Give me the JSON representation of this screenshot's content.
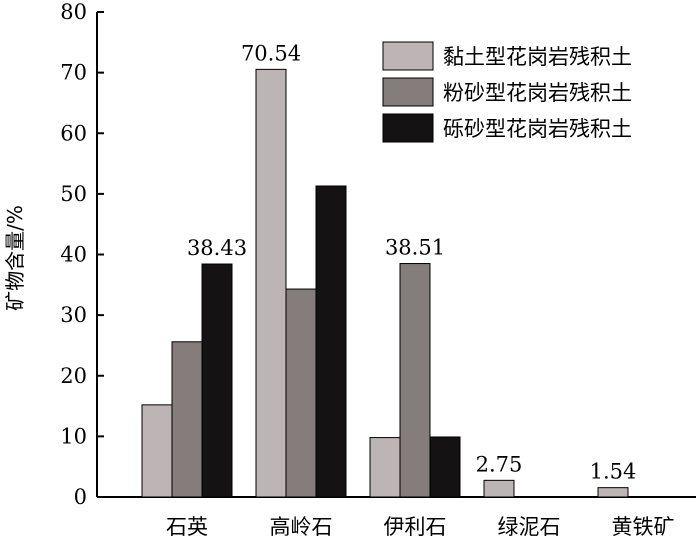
{
  "chart_data": {
    "type": "bar",
    "categories": [
      "石英",
      "高岭石",
      "伊利石",
      "绿泥石",
      "黄铁矿"
    ],
    "series": [
      {
        "name": "黏土型花岗岩残积土",
        "color": "#bdb5b5",
        "values": [
          15.2,
          70.54,
          9.8,
          2.75,
          1.54
        ]
      },
      {
        "name": "粉砂型花岗岩残积土",
        "color": "#857c7c",
        "values": [
          25.6,
          34.3,
          38.51,
          0,
          0
        ]
      },
      {
        "name": "砾砂型花岗岩残积土",
        "color": "#141212",
        "values": [
          38.43,
          51.3,
          9.9,
          0,
          0
        ]
      }
    ],
    "data_labels": [
      {
        "series": 2,
        "category": 0,
        "text": "38.43"
      },
      {
        "series": 0,
        "category": 1,
        "text": "70.54"
      },
      {
        "series": 1,
        "category": 2,
        "text": "38.51"
      },
      {
        "series": 0,
        "category": 3,
        "text": "2.75"
      },
      {
        "series": 0,
        "category": 4,
        "text": "1.54"
      }
    ],
    "xlabel": "",
    "ylabel": "矿物含量/%",
    "ylim": [
      0,
      80
    ],
    "yticks": [
      "0",
      "10",
      "20",
      "30",
      "40",
      "50",
      "60",
      "70",
      "80"
    ],
    "legend_position": "top-right",
    "grid": false
  }
}
